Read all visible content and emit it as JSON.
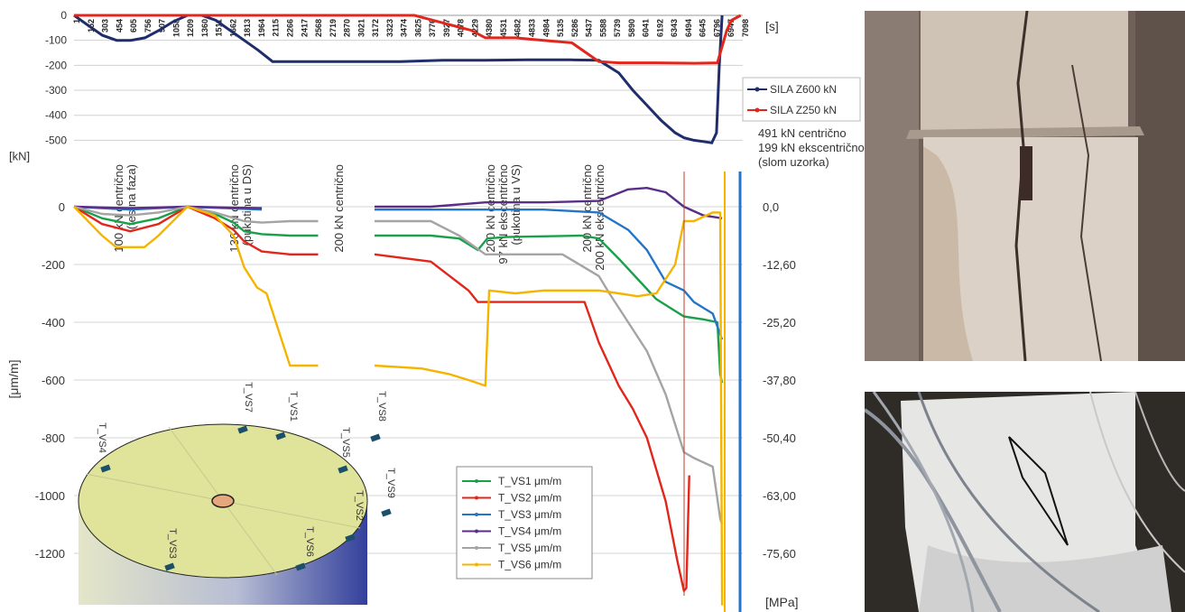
{
  "chart_data": [
    {
      "type": "line",
      "title": "",
      "xlabel": "[s]",
      "ylabel": "[kN]",
      "ylim": [
        -560,
        0
      ],
      "y_ticks": [
        0,
        -100,
        -200,
        -300,
        -400,
        -500
      ],
      "x_range": [
        1,
        7100
      ],
      "x_tick_labels": [
        "1",
        "152",
        "303",
        "454",
        "605",
        "756",
        "907",
        "1058",
        "1209",
        "1360",
        "1511",
        "1662",
        "1813",
        "1964",
        "2115",
        "2266",
        "2417",
        "2568",
        "2719",
        "2870",
        "3021",
        "3172",
        "3323",
        "3474",
        "3625",
        "3776",
        "3927",
        "4078",
        "4229",
        "4380",
        "4531",
        "4682",
        "4833",
        "4984",
        "5135",
        "5286",
        "5437",
        "5588",
        "5739",
        "5890",
        "6041",
        "6192",
        "6343",
        "6494",
        "6645",
        "6796",
        "6947",
        "7098"
      ],
      "series": [
        {
          "name": "SILA Z600 kN",
          "color": "#1f2d6b",
          "x": [
            1,
            152,
            303,
            454,
            605,
            756,
            907,
            1058,
            1209,
            1360,
            1511,
            1662,
            1813,
            1964,
            2115,
            2417,
            2568,
            2870,
            3021,
            3474,
            3927,
            4380,
            4833,
            5286,
            5588,
            5800,
            5950,
            6100,
            6250,
            6400,
            6494,
            6600,
            6700,
            6790,
            6840,
            6870,
            6900
          ],
          "y": [
            0,
            -40,
            -80,
            -100,
            -100,
            -90,
            -60,
            -25,
            0,
            0,
            -20,
            -60,
            -100,
            -140,
            -185,
            -185,
            -185,
            -185,
            -185,
            -185,
            -180,
            -180,
            -178,
            -178,
            -180,
            -230,
            -300,
            -360,
            -420,
            -470,
            -490,
            -500,
            -505,
            -510,
            -470,
            -200,
            0
          ]
        },
        {
          "name": "SILA Z250 kN",
          "color": "#e1261c",
          "x": [
            1,
            907,
            1058,
            1209,
            1360,
            1511,
            3625,
            3776,
            3927,
            4078,
            4229,
            4380,
            4700,
            5000,
            5300,
            5588,
            5800,
            6200,
            6600,
            6850,
            6950,
            7000,
            7098
          ],
          "y": [
            0,
            0,
            0,
            0,
            0,
            0,
            0,
            -15,
            -30,
            -45,
            -60,
            -90,
            -90,
            -100,
            -110,
            -185,
            -190,
            -190,
            -192,
            -190,
            -60,
            -20,
            0
          ]
        }
      ],
      "legend": "right",
      "annotations": [
        "100 kN centrično (testna faza)",
        "136 kN centrično (pukotina u DS)",
        "200 kN centrično",
        "200 kN centrično 97 kN ekscentrično (pukotina u VS)",
        "200 kN centrično 200 kN ekscentrično",
        "491 kN centrično",
        "199 kN ekscentrično",
        "(slom uzorka)"
      ]
    },
    {
      "type": "line",
      "title": "",
      "ylabel": "[μm/m]",
      "y2label": "[MPa]",
      "ylim": [
        -1380,
        80
      ],
      "y_ticks": [
        0,
        -200,
        -400,
        -600,
        -800,
        -1000,
        -1200
      ],
      "y2_ticks": [
        "0,0",
        "-12,60",
        "-25,20",
        "-37,80",
        "-50,40",
        "-63,00",
        "-75,60"
      ],
      "series": [
        {
          "name": "T_VS1 μm/m",
          "color": "#1aa04a",
          "x": [
            1,
            300,
            600,
            900,
            1209,
            1500,
            1700,
            1813,
            2000,
            2300,
            2600,
            3200,
            3800,
            4100,
            4300,
            4400,
            4600,
            5400,
            5588,
            5800,
            6000,
            6200,
            6494,
            6700,
            6850,
            6880,
            6900
          ],
          "y": [
            0,
            -40,
            -60,
            -40,
            0,
            -25,
            -55,
            -85,
            -95,
            -100,
            -100,
            -100,
            -100,
            -110,
            -150,
            -110,
            -105,
            -100,
            -110,
            -180,
            -250,
            -320,
            -380,
            -390,
            -400,
            -580,
            -610
          ]
        },
        {
          "name": "T_VS2 μm/m",
          "color": "#e1261c",
          "x": [
            1,
            300,
            600,
            900,
            1209,
            1500,
            1700,
            1813,
            2000,
            2300,
            2600,
            3200,
            3800,
            4000,
            4200,
            4300,
            4380,
            4700,
            5200,
            5436,
            5588,
            5800,
            5950,
            6100,
            6300,
            6420,
            6494,
            6520,
            6550
          ],
          "y": [
            0,
            -60,
            -85,
            -60,
            0,
            -40,
            -80,
            -120,
            -155,
            -165,
            -165,
            -165,
            -190,
            -240,
            -290,
            -330,
            -330,
            -330,
            -330,
            -330,
            -470,
            -620,
            -700,
            -800,
            -1020,
            -1220,
            -1330,
            -1320,
            -930
          ]
        },
        {
          "name": "T_VS3 μm/m",
          "color": "#2375c7",
          "x": [
            1,
            600,
            1209,
            2000,
            3200,
            4380,
            5000,
            5588,
            5900,
            6100,
            6300,
            6494,
            6600,
            6800,
            6900
          ],
          "y": [
            0,
            -10,
            0,
            -10,
            -10,
            -10,
            -10,
            -20,
            -80,
            -150,
            -260,
            -290,
            -330,
            -370,
            -460
          ]
        },
        {
          "name": "T_VS4 μm/m",
          "color": "#5a2d86",
          "x": [
            1,
            600,
            1209,
            2000,
            3200,
            3800,
            4380,
            5000,
            5588,
            5900,
            6100,
            6300,
            6494,
            6700,
            6900
          ],
          "y": [
            0,
            -5,
            0,
            -5,
            0,
            0,
            15,
            15,
            20,
            60,
            65,
            50,
            0,
            -30,
            -40
          ]
        },
        {
          "name": "T_VS5 μm/m",
          "color": "#a4a4a4",
          "x": [
            1,
            300,
            600,
            900,
            1209,
            1500,
            1813,
            2000,
            2300,
            2600,
            3200,
            3800,
            4100,
            4380,
            4700,
            5200,
            5588,
            5700,
            5900,
            6100,
            6300,
            6494,
            6600,
            6800,
            6880,
            6900
          ],
          "y": [
            0,
            -25,
            -30,
            -20,
            0,
            -20,
            -50,
            -55,
            -50,
            -50,
            -50,
            -50,
            -100,
            -165,
            -165,
            -165,
            -240,
            -300,
            -400,
            -500,
            -650,
            -850,
            -870,
            -900,
            -1080,
            -1100
          ]
        },
        {
          "name": "T_VS6 μm/m",
          "color": "#f4b400",
          "x": [
            1,
            300,
            450,
            600,
            750,
            900,
            1209,
            1500,
            1700,
            1813,
            1950,
            2050,
            2150,
            2300,
            2600,
            3200,
            3700,
            4000,
            4200,
            4380,
            4420,
            4700,
            5000,
            5588,
            5800,
            6000,
            6200,
            6400,
            6494,
            6600,
            6800,
            6880,
            6900
          ],
          "y": [
            0,
            -100,
            -140,
            -140,
            -140,
            -100,
            0,
            -30,
            -100,
            -210,
            -280,
            -300,
            -400,
            -550,
            -550,
            -550,
            -560,
            -580,
            -600,
            -620,
            -290,
            -300,
            -290,
            -290,
            -300,
            -310,
            -300,
            -200,
            -50,
            -50,
            -20,
            -20,
            -1380
          ]
        }
      ],
      "legend": "bottom-center"
    }
  ],
  "diagram": {
    "sensor_labels": [
      "T_VS1",
      "T_VS2",
      "T_VS3",
      "T_VS4",
      "T_VS5",
      "T_VS6",
      "T_VS7",
      "T_VS8",
      "T_VS9"
    ],
    "colors": {
      "top": "#dfe49a",
      "side_dark": "#33409c",
      "side_light": "#e4e6c8",
      "core": "#e7a77c",
      "sensor": "#1b4f6a"
    }
  },
  "photos": {
    "top_colors": {
      "bg": "#7a6a62",
      "column": "#d9cfc5",
      "shadow": "#5e4c45"
    },
    "bottom_colors": {
      "bg": "#3c3934",
      "column": "#e8e8e6",
      "cables": "#9aa0a8"
    }
  }
}
